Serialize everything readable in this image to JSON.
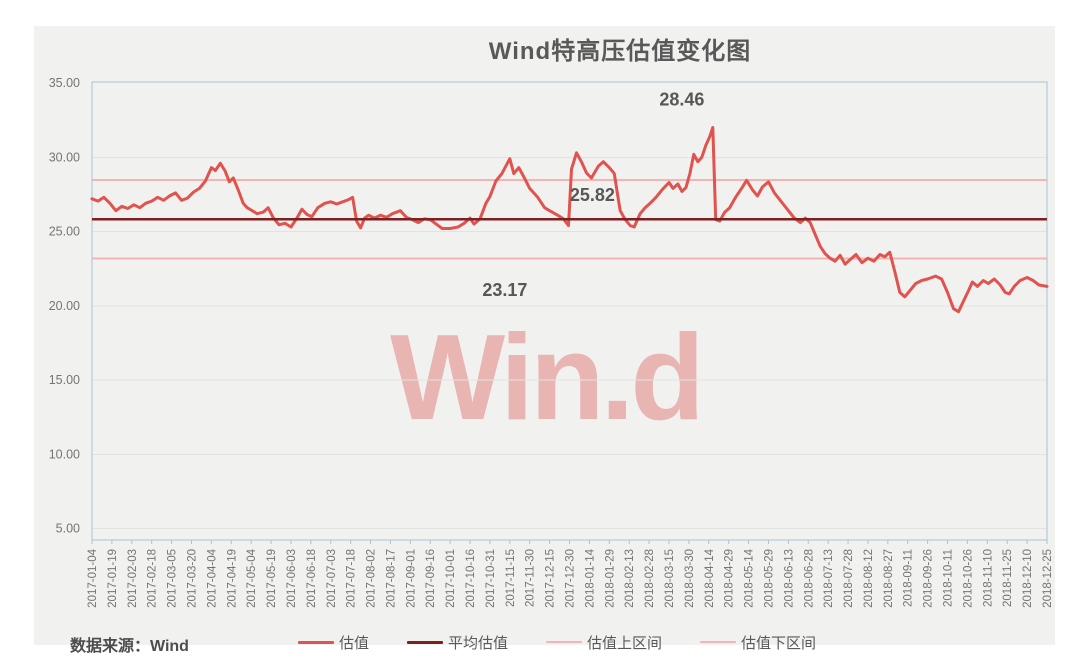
{
  "title": "Wind特高压估值变化图",
  "source_note": "数据来源：Wind",
  "watermark": "Win.d",
  "colors": {
    "panel_background": "#f1f1ef",
    "plot_border": "#a9c4d6",
    "gridline": "#e2e2e0",
    "axis_text": "#757575",
    "title_text": "#595959",
    "annotation_text": "#575757",
    "valuation_line": "#e0534e",
    "average_line": "#7e2020",
    "band_line": "#f5b3b1",
    "watermark_pink": "rgba(222,84,78,0.38)"
  },
  "chart_data": {
    "type": "line",
    "title": "Wind特高压估值变化图",
    "ylabel": "",
    "xlabel": "",
    "ylim": [
      5,
      35
    ],
    "grid": true,
    "legend_position": "bottom",
    "y_ticks": [
      "35.00",
      "30.00",
      "25.00",
      "20.00",
      "15.00",
      "10.00",
      "5.00"
    ],
    "y_tick_values": [
      35,
      30,
      25,
      20,
      15,
      10,
      5
    ],
    "categories": [
      "2017-01-04",
      "2017-01-19",
      "2017-02-03",
      "2017-02-18",
      "2017-03-05",
      "2017-03-20",
      "2017-04-04",
      "2017-04-19",
      "2017-05-04",
      "2017-05-19",
      "2017-06-03",
      "2017-06-18",
      "2017-07-03",
      "2017-07-18",
      "2017-08-02",
      "2017-08-17",
      "2017-09-01",
      "2017-09-16",
      "2017-10-01",
      "2017-10-16",
      "2017-10-31",
      "2017-11-15",
      "2017-11-30",
      "2017-12-15",
      "2017-12-30",
      "2018-01-14",
      "2018-01-29",
      "2018-02-13",
      "2018-02-28",
      "2018-03-15",
      "2018-03-30",
      "2018-04-14",
      "2018-04-29",
      "2018-05-14",
      "2018-05-29",
      "2018-06-13",
      "2018-06-28",
      "2018-07-13",
      "2018-07-28",
      "2018-08-12",
      "2018-08-27",
      "2018-09-11",
      "2018-09-26",
      "2018-10-11",
      "2018-10-26",
      "2018-11-10",
      "2018-11-25",
      "2018-12-10",
      "2018-12-25"
    ],
    "series": [
      {
        "name": "估值",
        "key": "valuation",
        "type": "line",
        "color": "#e0534e",
        "width": 3,
        "points": [
          [
            0,
            27.2
          ],
          [
            0.3,
            27.05
          ],
          [
            0.6,
            27.3
          ],
          [
            0.9,
            26.9
          ],
          [
            1.2,
            26.4
          ],
          [
            1.5,
            26.7
          ],
          [
            1.8,
            26.55
          ],
          [
            2.1,
            26.8
          ],
          [
            2.4,
            26.6
          ],
          [
            2.7,
            26.9
          ],
          [
            3,
            27.05
          ],
          [
            3.3,
            27.3
          ],
          [
            3.6,
            27.1
          ],
          [
            3.9,
            27.4
          ],
          [
            4.2,
            27.6
          ],
          [
            4.5,
            27.1
          ],
          [
            4.8,
            27.25
          ],
          [
            5.1,
            27.65
          ],
          [
            5.4,
            27.9
          ],
          [
            5.7,
            28.4
          ],
          [
            6,
            29.3
          ],
          [
            6.2,
            29.1
          ],
          [
            6.45,
            29.6
          ],
          [
            6.7,
            29.05
          ],
          [
            6.9,
            28.35
          ],
          [
            7.1,
            28.6
          ],
          [
            7.35,
            27.8
          ],
          [
            7.6,
            26.9
          ],
          [
            7.8,
            26.6
          ],
          [
            8.05,
            26.4
          ],
          [
            8.3,
            26.2
          ],
          [
            8.6,
            26.3
          ],
          [
            8.85,
            26.6
          ],
          [
            9.1,
            25.95
          ],
          [
            9.4,
            25.45
          ],
          [
            9.7,
            25.55
          ],
          [
            10,
            25.3
          ],
          [
            10.3,
            25.9
          ],
          [
            10.55,
            26.5
          ],
          [
            10.8,
            26.15
          ],
          [
            11.05,
            26.0
          ],
          [
            11.35,
            26.6
          ],
          [
            11.7,
            26.9
          ],
          [
            12,
            27.0
          ],
          [
            12.3,
            26.85
          ],
          [
            12.6,
            27.0
          ],
          [
            12.9,
            27.15
          ],
          [
            13.1,
            27.3
          ],
          [
            13.3,
            25.7
          ],
          [
            13.5,
            25.25
          ],
          [
            13.7,
            25.9
          ],
          [
            13.9,
            26.1
          ],
          [
            14.2,
            25.9
          ],
          [
            14.5,
            26.1
          ],
          [
            14.8,
            25.95
          ],
          [
            15.1,
            26.2
          ],
          [
            15.5,
            26.4
          ],
          [
            15.8,
            25.95
          ],
          [
            16.1,
            25.8
          ],
          [
            16.4,
            25.6
          ],
          [
            16.7,
            25.85
          ],
          [
            17,
            25.8
          ],
          [
            17.3,
            25.5
          ],
          [
            17.6,
            25.2
          ],
          [
            18,
            25.2
          ],
          [
            18.4,
            25.3
          ],
          [
            18.7,
            25.55
          ],
          [
            19,
            25.9
          ],
          [
            19.2,
            25.5
          ],
          [
            19.5,
            25.85
          ],
          [
            19.8,
            26.9
          ],
          [
            20,
            27.35
          ],
          [
            20.3,
            28.4
          ],
          [
            20.6,
            28.9
          ],
          [
            20.8,
            29.4
          ],
          [
            21,
            29.9
          ],
          [
            21.2,
            28.9
          ],
          [
            21.45,
            29.3
          ],
          [
            21.7,
            28.7
          ],
          [
            22,
            27.9
          ],
          [
            22.4,
            27.3
          ],
          [
            22.75,
            26.6
          ],
          [
            23,
            26.4
          ],
          [
            23.4,
            26.1
          ],
          [
            23.7,
            25.85
          ],
          [
            23.95,
            25.4
          ],
          [
            24.1,
            29.2
          ],
          [
            24.35,
            30.3
          ],
          [
            24.6,
            29.7
          ],
          [
            24.85,
            28.95
          ],
          [
            25.1,
            28.6
          ],
          [
            25.45,
            29.4
          ],
          [
            25.7,
            29.7
          ],
          [
            26,
            29.3
          ],
          [
            26.25,
            28.9
          ],
          [
            26.4,
            27.6
          ],
          [
            26.55,
            26.4
          ],
          [
            26.8,
            25.8
          ],
          [
            27.05,
            25.4
          ],
          [
            27.25,
            25.3
          ],
          [
            27.55,
            26.2
          ],
          [
            27.8,
            26.6
          ],
          [
            28.05,
            26.9
          ],
          [
            28.35,
            27.3
          ],
          [
            28.65,
            27.8
          ],
          [
            29,
            28.3
          ],
          [
            29.2,
            27.9
          ],
          [
            29.45,
            28.2
          ],
          [
            29.65,
            27.7
          ],
          [
            29.85,
            27.95
          ],
          [
            30.05,
            28.9
          ],
          [
            30.25,
            30.2
          ],
          [
            30.45,
            29.7
          ],
          [
            30.65,
            30.0
          ],
          [
            30.85,
            30.8
          ],
          [
            31.05,
            31.4
          ],
          [
            31.2,
            32.0
          ],
          [
            31.35,
            25.8
          ],
          [
            31.55,
            25.7
          ],
          [
            31.8,
            26.3
          ],
          [
            32.05,
            26.6
          ],
          [
            32.35,
            27.3
          ],
          [
            32.65,
            27.9
          ],
          [
            32.9,
            28.45
          ],
          [
            33.2,
            27.8
          ],
          [
            33.45,
            27.4
          ],
          [
            33.7,
            28.0
          ],
          [
            34,
            28.35
          ],
          [
            34.3,
            27.6
          ],
          [
            34.65,
            27.0
          ],
          [
            35,
            26.4
          ],
          [
            35.3,
            25.9
          ],
          [
            35.6,
            25.6
          ],
          [
            35.85,
            25.9
          ],
          [
            36.1,
            25.6
          ],
          [
            36.35,
            24.8
          ],
          [
            36.6,
            24.0
          ],
          [
            36.85,
            23.5
          ],
          [
            37.1,
            23.2
          ],
          [
            37.35,
            23.0
          ],
          [
            37.6,
            23.4
          ],
          [
            37.85,
            22.8
          ],
          [
            38.1,
            23.1
          ],
          [
            38.4,
            23.45
          ],
          [
            38.7,
            22.9
          ],
          [
            39,
            23.2
          ],
          [
            39.3,
            23.0
          ],
          [
            39.6,
            23.45
          ],
          [
            39.85,
            23.3
          ],
          [
            40.1,
            23.6
          ],
          [
            40.35,
            22.3
          ],
          [
            40.6,
            20.9
          ],
          [
            40.85,
            20.6
          ],
          [
            41.1,
            21.0
          ],
          [
            41.4,
            21.5
          ],
          [
            41.7,
            21.7
          ],
          [
            42,
            21.8
          ],
          [
            42.4,
            22.0
          ],
          [
            42.7,
            21.8
          ],
          [
            43,
            20.9
          ],
          [
            43.3,
            19.8
          ],
          [
            43.55,
            19.6
          ],
          [
            43.8,
            20.3
          ],
          [
            44.05,
            21.0
          ],
          [
            44.25,
            21.6
          ],
          [
            44.5,
            21.3
          ],
          [
            44.8,
            21.7
          ],
          [
            45.05,
            21.5
          ],
          [
            45.35,
            21.8
          ],
          [
            45.65,
            21.4
          ],
          [
            45.9,
            20.9
          ],
          [
            46.1,
            20.8
          ],
          [
            46.35,
            21.3
          ],
          [
            46.65,
            21.7
          ],
          [
            47,
            21.9
          ],
          [
            47.3,
            21.7
          ],
          [
            47.6,
            21.4
          ],
          [
            48,
            21.3
          ]
        ]
      },
      {
        "name": "平均估值",
        "key": "average",
        "type": "hline",
        "color": "#7e2020",
        "width": 2.5,
        "value": 25.82
      },
      {
        "name": "估值上区间",
        "key": "upper-band",
        "type": "hline",
        "color": "#f5b3b1",
        "width": 2,
        "value": 28.46
      },
      {
        "name": "估值下区间",
        "key": "lower-band",
        "type": "hline",
        "color": "#f5b3b1",
        "width": 2,
        "value": 23.17
      }
    ],
    "annotations": [
      {
        "text": "28.46",
        "t": 29.65,
        "v": 33.5
      },
      {
        "text": "25.82",
        "t": 25.15,
        "v": 27.05
      },
      {
        "text": "23.17",
        "t": 20.75,
        "v": 20.65
      }
    ]
  }
}
